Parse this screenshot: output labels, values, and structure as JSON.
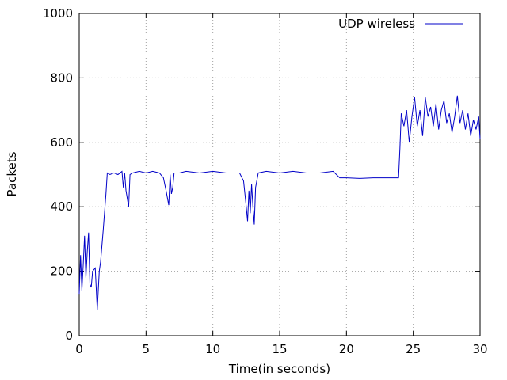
{
  "chart_data": {
    "type": "line",
    "xlabel": "Time(in seconds)",
    "ylabel": "Packets",
    "x": [
      0,
      0.1,
      0.2,
      0.3,
      0.4,
      0.5,
      0.6,
      0.7,
      0.8,
      0.9,
      1.0,
      1.2,
      1.35,
      1.5,
      1.6,
      1.8,
      2.0,
      2.1,
      2.3,
      2.6,
      2.9,
      3.2,
      3.3,
      3.4,
      3.5,
      3.7,
      3.8,
      4.0,
      4.5,
      5.0,
      5.5,
      6.0,
      6.3,
      6.5,
      6.7,
      6.8,
      6.9,
      7.0,
      7.1,
      7.5,
      8.0,
      9.0,
      10.0,
      11.0,
      12.0,
      12.3,
      12.5,
      12.6,
      12.7,
      12.8,
      12.9,
      13.0,
      13.1,
      13.2,
      13.4,
      14.0,
      15.0,
      16.0,
      17.0,
      18.0,
      19.0,
      19.5,
      20.0,
      21.0,
      22.0,
      23.0,
      23.9,
      24.0,
      24.1,
      24.3,
      24.5,
      24.7,
      24.9,
      25.1,
      25.3,
      25.5,
      25.7,
      25.9,
      26.1,
      26.3,
      26.5,
      26.7,
      26.9,
      27.1,
      27.3,
      27.5,
      27.7,
      27.9,
      28.1,
      28.3,
      28.5,
      28.7,
      28.9,
      29.1,
      29.3,
      29.5,
      29.7,
      29.9,
      30.0
    ],
    "series": [
      {
        "name": "UDP wireless",
        "color": "#0000c8",
        "values": [
          130,
          250,
          140,
          220,
          310,
          180,
          260,
          320,
          160,
          150,
          200,
          210,
          80,
          200,
          230,
          330,
          440,
          505,
          500,
          505,
          500,
          510,
          460,
          505,
          450,
          400,
          500,
          505,
          510,
          505,
          510,
          505,
          490,
          450,
          405,
          500,
          440,
          460,
          505,
          505,
          510,
          505,
          510,
          505,
          505,
          480,
          400,
          355,
          450,
          380,
          470,
          400,
          345,
          460,
          505,
          510,
          505,
          510,
          505,
          505,
          510,
          490,
          490,
          488,
          490,
          490,
          490,
          580,
          690,
          650,
          700,
          600,
          680,
          740,
          650,
          700,
          620,
          740,
          680,
          710,
          650,
          720,
          640,
          700,
          730,
          660,
          690,
          630,
          680,
          745,
          660,
          700,
          640,
          690,
          620,
          670,
          640,
          680,
          610
        ]
      }
    ],
    "xlim": [
      0,
      30
    ],
    "ylim": [
      0,
      1000
    ],
    "xticks": [
      0,
      5,
      10,
      15,
      20,
      25,
      30
    ],
    "yticks": [
      0,
      200,
      400,
      600,
      800,
      1000
    ],
    "grid": true,
    "legend": "top-right"
  }
}
